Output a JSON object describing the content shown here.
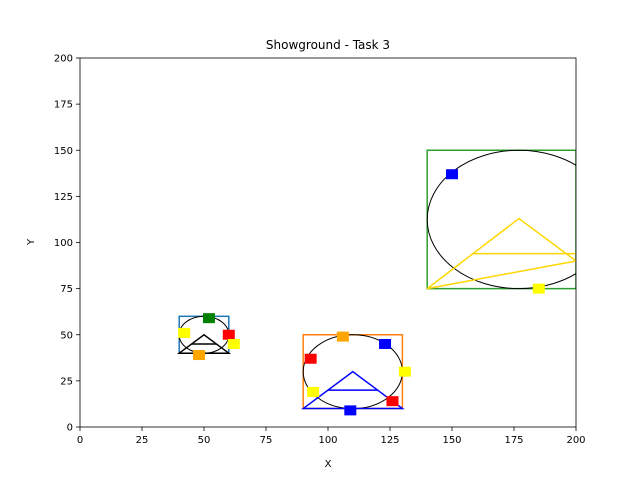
{
  "chart_data": {
    "type": "scatter",
    "title": "Showground - Task 3",
    "xlabel": "X",
    "ylabel": "Y",
    "xlim": [
      0,
      200
    ],
    "ylim": [
      0,
      200
    ],
    "xticks": [
      "0",
      "25",
      "50",
      "75",
      "100",
      "125",
      "150",
      "175",
      "200"
    ],
    "yticks": [
      "0",
      "25",
      "50",
      "75",
      "100",
      "125",
      "150",
      "175",
      "200"
    ],
    "grid": false,
    "rectangles": [
      {
        "name": "showground-green",
        "x0": 140,
        "y0": 75,
        "x1": 200,
        "y1": 150,
        "color": "#2ca02c"
      },
      {
        "name": "showground-blue",
        "x0": 40,
        "y0": 40,
        "x1": 60,
        "y1": 60,
        "color": "#1f77b4"
      },
      {
        "name": "showground-orange",
        "x0": 90,
        "y0": 10,
        "x1": 130,
        "y1": 50,
        "color": "#ff7f0e"
      }
    ],
    "ellipses": [
      {
        "name": "large",
        "cx": 177,
        "cy": 112.5,
        "rx": 37,
        "ry": 37.5,
        "color": "#000000"
      },
      {
        "name": "small",
        "cx": 50,
        "cy": 50,
        "rx": 10,
        "ry": 10,
        "color": "#000000"
      },
      {
        "name": "medium",
        "cx": 110,
        "cy": 30,
        "rx": 20,
        "ry": 20,
        "color": "#000000"
      }
    ],
    "triangles": [
      {
        "name": "gold",
        "points": [
          [
            140,
            75
          ],
          [
            177,
            113
          ],
          [
            200,
            90
          ]
        ],
        "midline": [
          [
            158,
            94
          ],
          [
            200,
            94
          ]
        ],
        "color": "#ffd700"
      },
      {
        "name": "black",
        "points": [
          [
            40,
            40
          ],
          [
            50,
            50
          ],
          [
            60,
            40
          ]
        ],
        "midline": [
          [
            45,
            45
          ],
          [
            55,
            45
          ]
        ],
        "color": "#000000"
      },
      {
        "name": "blue",
        "points": [
          [
            90,
            10
          ],
          [
            110,
            30
          ],
          [
            130,
            10
          ]
        ],
        "midline": [
          [
            100,
            20
          ],
          [
            120,
            20
          ]
        ],
        "color": "#0000ff"
      }
    ],
    "markers": [
      {
        "x": 150,
        "y": 137,
        "color": "#0000ff"
      },
      {
        "x": 185,
        "y": 75,
        "color": "#ffff00"
      },
      {
        "x": 52,
        "y": 59,
        "color": "#008000"
      },
      {
        "x": 42,
        "y": 51,
        "color": "#ffff00"
      },
      {
        "x": 60,
        "y": 50,
        "color": "#ff0000"
      },
      {
        "x": 62,
        "y": 45,
        "color": "#ffff00"
      },
      {
        "x": 48,
        "y": 39,
        "color": "#ffa500"
      },
      {
        "x": 106,
        "y": 49,
        "color": "#ffa500"
      },
      {
        "x": 123,
        "y": 45,
        "color": "#0000ff"
      },
      {
        "x": 93,
        "y": 37,
        "color": "#ff0000"
      },
      {
        "x": 131,
        "y": 30,
        "color": "#ffff00"
      },
      {
        "x": 94,
        "y": 19,
        "color": "#ffff00"
      },
      {
        "x": 126,
        "y": 14,
        "color": "#ff0000"
      },
      {
        "x": 109,
        "y": 9,
        "color": "#0000ff"
      }
    ]
  }
}
